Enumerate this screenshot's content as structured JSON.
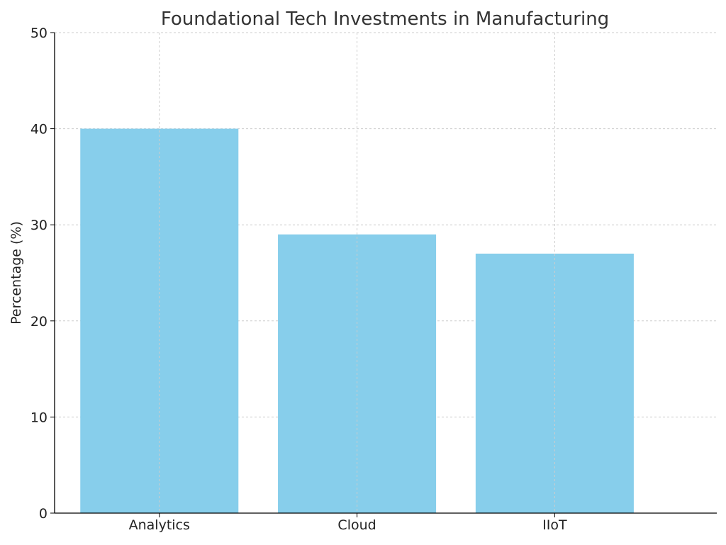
{
  "chart_data": {
    "type": "bar",
    "title": "Foundational Tech Investments in Manufacturing",
    "xlabel": "",
    "ylabel": "Percentage (%)",
    "categories": [
      "Analytics",
      "Cloud",
      "IIoT"
    ],
    "values": [
      40,
      29,
      27
    ],
    "ylim": [
      0,
      50
    ],
    "yticks": [
      0,
      10,
      20,
      30,
      40,
      50
    ],
    "grid": true,
    "colors": {
      "bar": "#87ceeb",
      "grid": "#cccccc",
      "axis": "#000000",
      "text": "#333333"
    }
  }
}
